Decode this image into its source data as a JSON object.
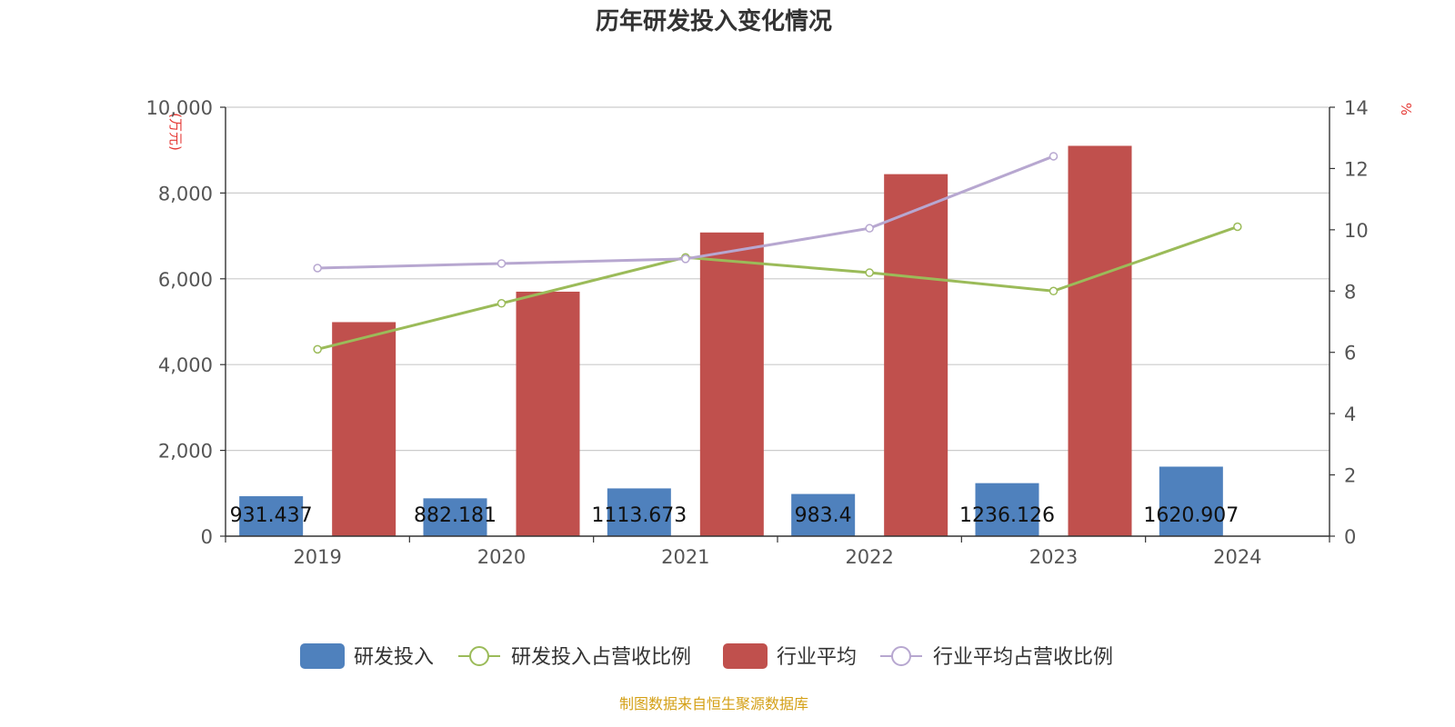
{
  "colors": {
    "rd_bar": "#4f81bd",
    "industry_bar": "#c0504d",
    "rd_ratio_line": "#9bbb59",
    "industry_ratio_line": "#b7a7d0",
    "axis": "#333333",
    "grid": "#cccccc",
    "unit_label": "#e53935",
    "source": "#d4a017"
  },
  "chart_data": {
    "type": "bar",
    "title": "历年研发投入变化情况",
    "categories": [
      "2019",
      "2020",
      "2021",
      "2022",
      "2023",
      "2024"
    ],
    "y_left": {
      "unit_label": "(万元)",
      "ylim": [
        0,
        10000
      ],
      "ticks": [
        "0",
        "2,000",
        "4,000",
        "6,000",
        "8,000",
        "10,000"
      ]
    },
    "y_right": {
      "unit_label": "%",
      "ylim": [
        0,
        14
      ],
      "ticks": [
        "0",
        "2",
        "4",
        "6",
        "8",
        "10",
        "12",
        "14"
      ]
    },
    "series": [
      {
        "name": "研发投入",
        "kind": "bar",
        "axis": "left",
        "values": [
          931.437,
          882.181,
          1113.673,
          983.4,
          1236.126,
          1620.907
        ],
        "labels": [
          "931.437",
          "882.181",
          "1113.673",
          "983.4",
          "1236.126",
          "1620.907"
        ]
      },
      {
        "name": "研发投入占营收比例",
        "kind": "line",
        "axis": "right",
        "values": [
          6.1,
          7.6,
          9.1,
          8.6,
          8.0,
          10.1
        ]
      },
      {
        "name": "行业平均",
        "kind": "bar",
        "axis": "left",
        "values": [
          4990,
          5700,
          7080,
          8440,
          9100,
          null
        ]
      },
      {
        "name": "行业平均占营收比例",
        "kind": "line",
        "axis": "right",
        "values": [
          8.75,
          8.9,
          9.05,
          10.05,
          12.4,
          null
        ]
      }
    ],
    "grid": true,
    "legend_position": "bottom-center"
  },
  "source_text": "制图数据来自恒生聚源数据库"
}
